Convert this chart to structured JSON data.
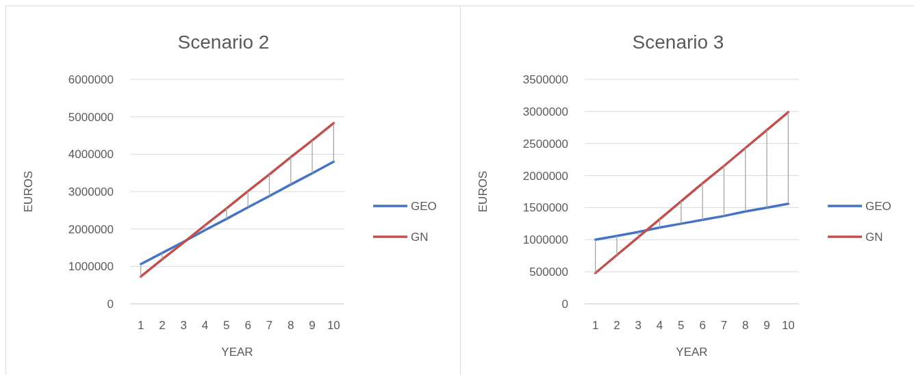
{
  "chart_data": [
    {
      "type": "line",
      "title": "Scenario 2",
      "xlabel": "YEAR",
      "ylabel": "EUROS",
      "categories": [
        "1",
        "2",
        "3",
        "4",
        "5",
        "6",
        "7",
        "8",
        "9",
        "10"
      ],
      "series": [
        {
          "name": "GEO",
          "color": "#4472c4",
          "values": [
            1060000,
            1360000,
            1660000,
            1970000,
            2270000,
            2580000,
            2880000,
            3190000,
            3490000,
            3800000
          ],
          "errors": [
            [
              730000,
              1060000
            ],
            [
              1190000,
              1360000
            ],
            null,
            [
              1970000,
              2100000
            ],
            [
              2270000,
              2550000
            ],
            [
              2580000,
              3010000
            ],
            [
              2880000,
              3460000
            ],
            [
              3190000,
              3920000
            ],
            [
              3490000,
              4370000
            ],
            [
              3800000,
              4830000
            ]
          ]
        },
        {
          "name": "GN",
          "color": "#c0504d",
          "values": [
            730000,
            1190000,
            1640000,
            2100000,
            2550000,
            3010000,
            3460000,
            3920000,
            4370000,
            4830000
          ]
        }
      ],
      "ylim": [
        0,
        6000000
      ],
      "yticks": [
        0,
        1000000,
        2000000,
        3000000,
        4000000,
        5000000,
        6000000
      ],
      "grid": "y",
      "legend": "right",
      "marker": "none"
    },
    {
      "type": "line",
      "title": "Scenario 3",
      "xlabel": "YEAR",
      "ylabel": "EUROS",
      "categories": [
        "1",
        "2",
        "3",
        "4",
        "5",
        "6",
        "7",
        "8",
        "9",
        "10"
      ],
      "series": [
        {
          "name": "GEO",
          "color": "#4472c4",
          "values": [
            1000000,
            1060000,
            1120000,
            1190000,
            1250000,
            1310000,
            1370000,
            1440000,
            1500000,
            1560000
          ],
          "errors": [
            [
              480000,
              1000000
            ],
            [
              760000,
              1060000
            ],
            [
              1040000,
              1120000
            ],
            [
              1190000,
              1320000
            ],
            [
              1250000,
              1600000
            ],
            [
              1310000,
              1880000
            ],
            [
              1370000,
              2150000
            ],
            [
              1440000,
              2430000
            ],
            [
              1500000,
              2710000
            ],
            [
              1560000,
              2990000
            ]
          ]
        },
        {
          "name": "GN",
          "color": "#c0504d",
          "values": [
            480000,
            760000,
            1040000,
            1320000,
            1600000,
            1880000,
            2150000,
            2430000,
            2710000,
            2990000
          ]
        }
      ],
      "ylim": [
        0,
        3500000
      ],
      "yticks": [
        0,
        500000,
        1000000,
        1500000,
        2000000,
        2500000,
        3000000,
        3500000
      ],
      "grid": "y",
      "legend": "right",
      "marker": "none"
    }
  ]
}
